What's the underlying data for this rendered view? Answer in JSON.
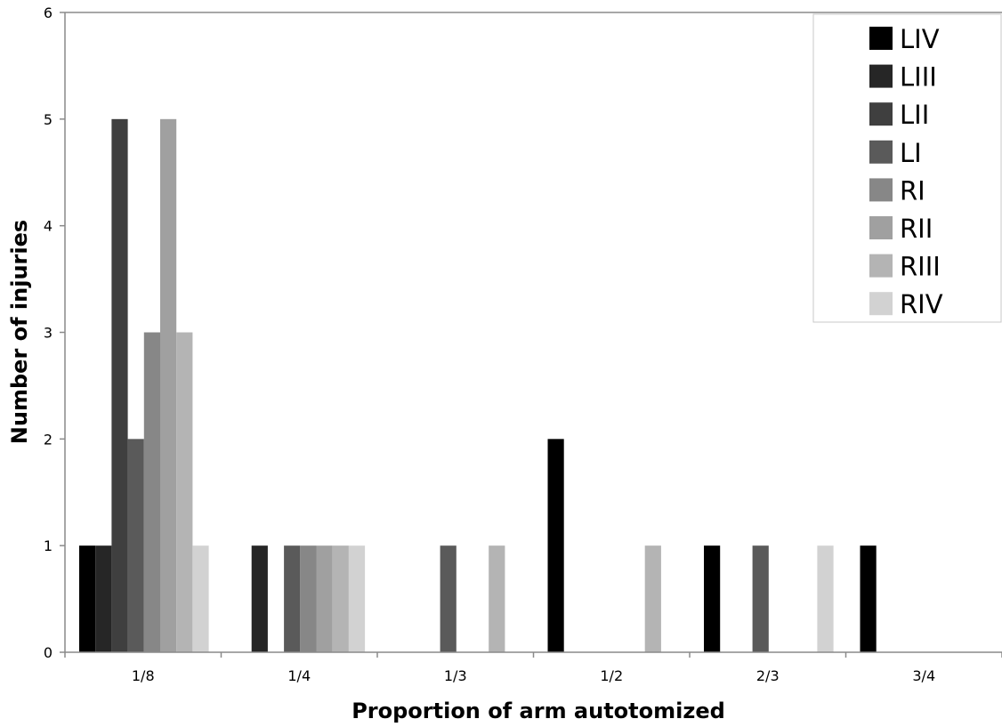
{
  "chart_data": {
    "type": "bar",
    "xlabel": "Proportion of arm autotomized",
    "ylabel": "Number of injuries",
    "categories": [
      "1/8",
      "1/4",
      "1/3",
      "1/2",
      "2/3",
      "3/4"
    ],
    "ylim": [
      0,
      6
    ],
    "yticks": [
      "0",
      "1",
      "2",
      "3",
      "4",
      "5",
      "6"
    ],
    "grid": false,
    "legend_position": "top-right",
    "series": [
      {
        "name": "LIV",
        "color": "#000000",
        "values": [
          1,
          0,
          0,
          2,
          1,
          1
        ]
      },
      {
        "name": "LIII",
        "color": "#262626",
        "values": [
          1,
          1,
          0,
          0,
          0,
          0
        ]
      },
      {
        "name": "LII",
        "color": "#3f3f3f",
        "values": [
          5,
          0,
          0,
          0,
          0,
          0
        ]
      },
      {
        "name": "LI",
        "color": "#5a5a5a",
        "values": [
          2,
          1,
          1,
          0,
          1,
          0
        ]
      },
      {
        "name": "RI",
        "color": "#878787",
        "values": [
          3,
          1,
          0,
          0,
          0,
          0
        ]
      },
      {
        "name": "RII",
        "color": "#a0a0a0",
        "values": [
          5,
          1,
          0,
          0,
          0,
          0
        ]
      },
      {
        "name": "RIII",
        "color": "#b4b4b4",
        "values": [
          3,
          1,
          1,
          1,
          0,
          0
        ]
      },
      {
        "name": "RIV",
        "color": "#d2d2d2",
        "values": [
          1,
          1,
          0,
          0,
          1,
          0
        ]
      }
    ]
  }
}
